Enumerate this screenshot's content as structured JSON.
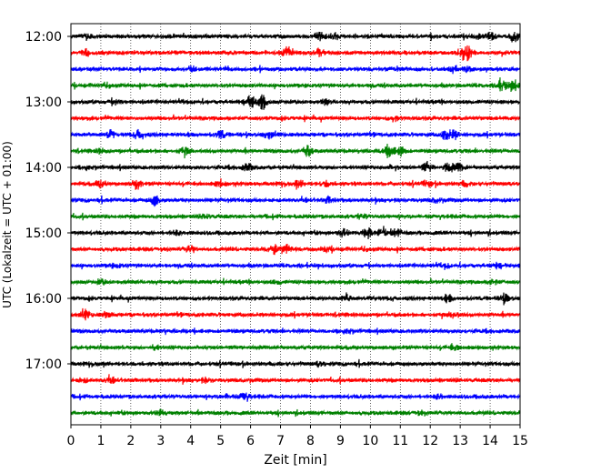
{
  "chart_data": {
    "type": "line",
    "xlabel": "Zeit  [min]",
    "ylabel": "UTC (Lokalzeit = UTC + 01:00)",
    "xlim": [
      0,
      15
    ],
    "x_ticks": [
      "0",
      "1",
      "2",
      "3",
      "4",
      "5",
      "6",
      "7",
      "8",
      "9",
      "10",
      "11",
      "12",
      "13",
      "14",
      "15"
    ],
    "y_ticks": [
      "12:00",
      "13:00",
      "14:00",
      "15:00",
      "16:00",
      "17:00"
    ],
    "grid_x": true,
    "trace_colors": [
      "#000000",
      "#ff0000",
      "#0000ff",
      "#008000"
    ],
    "traces": [
      {
        "start": "12:00",
        "events": [
          [
            0.5,
            0.5
          ],
          [
            8.3,
            0.6
          ],
          [
            8.8,
            0.5
          ],
          [
            13.5,
            0.4
          ],
          [
            14.0,
            0.6
          ],
          [
            14.8,
            0.9
          ]
        ]
      },
      {
        "start": "12:15",
        "events": [
          [
            0.5,
            0.4
          ],
          [
            7.2,
            1.0
          ],
          [
            8.3,
            0.5
          ],
          [
            13.1,
            1.0
          ],
          [
            13.3,
            0.8
          ]
        ]
      },
      {
        "start": "12:30",
        "events": [
          [
            4.0,
            0.4
          ],
          [
            12.8,
            0.5
          ],
          [
            13.2,
            0.4
          ]
        ]
      },
      {
        "start": "12:45",
        "events": [
          [
            1.2,
            0.4
          ],
          [
            14.4,
            0.9
          ],
          [
            14.8,
            0.7
          ]
        ]
      },
      {
        "start": "13:00",
        "events": [
          [
            1.5,
            0.4
          ],
          [
            6.0,
            0.9
          ],
          [
            6.4,
            1.0
          ],
          [
            8.5,
            0.4
          ]
        ]
      },
      {
        "start": "13:15",
        "events": [
          [
            10.8,
            0.4
          ]
        ]
      },
      {
        "start": "13:30",
        "events": [
          [
            1.3,
            0.6
          ],
          [
            2.3,
            0.8
          ],
          [
            5.0,
            0.5
          ],
          [
            6.6,
            0.5
          ],
          [
            12.5,
            0.7
          ],
          [
            12.8,
            0.6
          ]
        ]
      },
      {
        "start": "13:45",
        "events": [
          [
            1.0,
            0.3
          ],
          [
            3.8,
            0.5
          ],
          [
            7.9,
            0.8
          ],
          [
            10.6,
            0.9
          ],
          [
            11.0,
            0.6
          ]
        ]
      },
      {
        "start": "14:00",
        "events": [
          [
            0.5,
            0.3
          ],
          [
            5.9,
            0.5
          ],
          [
            10.8,
            0.4
          ],
          [
            11.9,
            0.7
          ],
          [
            12.6,
            0.8
          ],
          [
            13.0,
            0.6
          ]
        ]
      },
      {
        "start": "14:15",
        "events": [
          [
            1.0,
            0.5
          ],
          [
            2.2,
            0.7
          ],
          [
            5.0,
            0.6
          ],
          [
            7.6,
            0.5
          ],
          [
            8.5,
            0.4
          ],
          [
            11.9,
            0.4
          ],
          [
            13.2,
            0.4
          ]
        ]
      },
      {
        "start": "14:30",
        "events": [
          [
            2.8,
            0.9
          ],
          [
            8.6,
            0.4
          ],
          [
            12.2,
            0.3
          ]
        ]
      },
      {
        "start": "14:45",
        "events": [
          [
            4.5,
            0.3
          ],
          [
            9.7,
            0.3
          ]
        ]
      },
      {
        "start": "15:00",
        "events": [
          [
            3.5,
            0.3
          ],
          [
            9.1,
            0.6
          ],
          [
            9.9,
            0.8
          ],
          [
            10.4,
            0.9
          ],
          [
            10.9,
            0.6
          ]
        ]
      },
      {
        "start": "15:15",
        "events": [
          [
            4.0,
            0.5
          ],
          [
            6.8,
            0.7
          ],
          [
            7.2,
            0.6
          ],
          [
            8.5,
            0.3
          ],
          [
            9.8,
            0.3
          ]
        ]
      },
      {
        "start": "15:30",
        "events": [
          [
            1.5,
            0.3
          ],
          [
            12.5,
            0.4
          ],
          [
            14.2,
            0.3
          ]
        ]
      },
      {
        "start": "15:45",
        "events": [
          [
            1.0,
            0.3
          ],
          [
            6.9,
            0.3
          ],
          [
            14.1,
            0.4
          ]
        ]
      },
      {
        "start": "16:00",
        "events": [
          [
            9.2,
            0.6
          ],
          [
            12.6,
            0.5
          ],
          [
            14.5,
            0.6
          ]
        ]
      },
      {
        "start": "16:15",
        "events": [
          [
            0.5,
            0.8
          ],
          [
            1.2,
            0.3
          ],
          [
            12.8,
            0.4
          ]
        ]
      },
      {
        "start": "16:30",
        "events": [
          [
            3.2,
            0.3
          ],
          [
            9.2,
            0.3
          ]
        ]
      },
      {
        "start": "16:45",
        "events": [
          [
            12.8,
            0.4
          ],
          [
            2.8,
            0.3
          ]
        ]
      },
      {
        "start": "17:00",
        "events": [
          [
            8.3,
            0.3
          ]
        ]
      },
      {
        "start": "17:15",
        "events": [
          [
            0.4,
            0.3
          ],
          [
            1.3,
            0.3
          ],
          [
            4.5,
            0.3
          ]
        ]
      },
      {
        "start": "17:30",
        "events": [
          [
            5.8,
            0.5
          ],
          [
            5.2,
            0.3
          ],
          [
            12.3,
            0.3
          ]
        ]
      },
      {
        "start": "17:45",
        "events": [
          [
            3.0,
            0.4
          ],
          [
            11.7,
            0.3
          ]
        ]
      }
    ]
  }
}
